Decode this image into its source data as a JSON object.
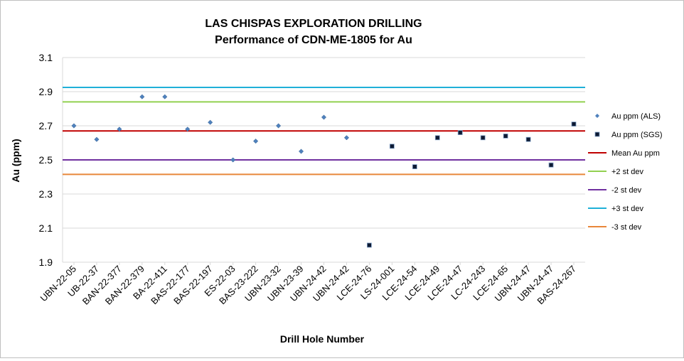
{
  "chart_data": {
    "type": "scatter",
    "title": [
      "LAS CHISPAS EXPLORATION DRILLING",
      "Performance of CDN-ME-1805 for Au"
    ],
    "xlabel": "Drill Hole Number",
    "ylabel": "Au (ppm)",
    "ylim": [
      1.9,
      3.1
    ],
    "yticks": [
      "1.9",
      "2.1",
      "2.3",
      "2.5",
      "2.7",
      "2.9",
      "3.1"
    ],
    "grid": true,
    "legend_position": "right",
    "categories": [
      "UBN-22-05",
      "UB-22-37",
      "BAN-22-377",
      "BAN-22-379",
      "BA-22-411",
      "BAS-22-177",
      "BAS-22-197",
      "ES-22-03",
      "BAS-23-222",
      "UBN-23-32",
      "UBN-23-39",
      "UBN-24-42",
      "UBN-24-42",
      "LCE-24-76",
      "LS-24-001",
      "LCE-24-54",
      "LCE-24-49",
      "LCE-24-47",
      "LC-24-243",
      "LCE-24-65",
      "UBN-24-47",
      "UBN-24-47",
      "BAS-24-267"
    ],
    "series": [
      {
        "name": "Au ppm (ALS)",
        "color": "#4f81bd",
        "marker": "diamond",
        "values": [
          2.7,
          2.62,
          2.68,
          2.87,
          2.87,
          2.68,
          2.72,
          2.5,
          2.61,
          2.7,
          2.55,
          2.75,
          2.63,
          null,
          null,
          null,
          null,
          null,
          null,
          null,
          null,
          null,
          null
        ]
      },
      {
        "name": "Au ppm (SGS)",
        "color": "#0d1a33",
        "marker": "square",
        "values": [
          null,
          null,
          null,
          null,
          null,
          null,
          null,
          null,
          null,
          null,
          null,
          null,
          null,
          2.0,
          2.58,
          2.46,
          2.63,
          2.66,
          2.63,
          2.64,
          2.62,
          2.47,
          2.71
        ]
      }
    ],
    "reference_lines": [
      {
        "name": "Mean Au ppm",
        "value": 2.67,
        "color": "#c00000"
      },
      {
        "name": "+2 st dev",
        "value": 2.84,
        "color": "#92d050"
      },
      {
        "name": "-2 st dev",
        "value": 2.5,
        "color": "#7030a0"
      },
      {
        "name": "+3 st dev",
        "value": 2.925,
        "color": "#1fb0d8"
      },
      {
        "name": "-3 st dev",
        "value": 2.415,
        "color": "#e8873a"
      }
    ]
  }
}
